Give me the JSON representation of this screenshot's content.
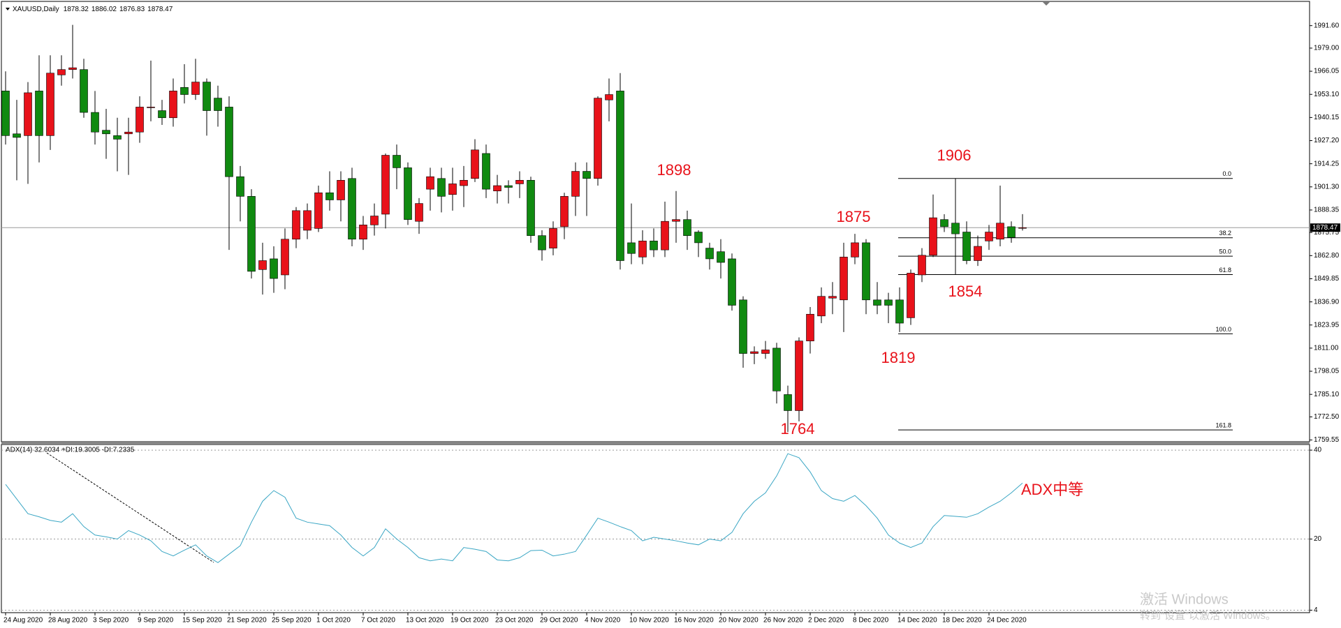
{
  "chart_data": [
    {
      "type": "candlestick",
      "title": "XAUUSD,Daily",
      "categories": [
        "24 Aug 2020",
        null,
        null,
        null,
        "28 Aug 2020",
        null,
        null,
        null,
        "3 Sep 2020",
        null,
        null,
        null,
        "9 Sep 2020",
        null,
        null,
        null,
        "15 Sep 2020",
        null,
        null,
        null,
        "21 Sep 2020",
        null,
        null,
        null,
        "25 Sep 2020",
        null,
        null,
        null,
        "1 Oct 2020",
        null,
        null,
        null,
        "7 Oct 2020",
        null,
        null,
        null,
        "13 Oct 2020",
        null,
        null,
        null,
        "19 Oct 2020",
        null,
        null,
        null,
        "23 Oct 2020",
        null,
        null,
        null,
        "29 Oct 2020",
        null,
        null,
        null,
        "4 Nov 2020",
        null,
        null,
        null,
        "10 Nov 2020",
        null,
        null,
        null,
        "16 Nov 2020",
        null,
        null,
        null,
        "20 Nov 2020",
        null,
        null,
        null,
        "26 Nov 2020",
        null,
        null,
        null,
        "2 Dec 2020",
        null,
        null,
        null,
        "8 Dec 2020",
        null,
        null,
        null,
        "14 Dec 2020",
        null,
        null,
        null,
        "18 Dec 2020",
        null,
        null,
        null,
        "24 Dec 2020",
        null,
        null,
        null
      ],
      "open": [
        1955,
        1931,
        1930,
        1955,
        1930,
        1964,
        1967,
        1967,
        1943,
        1933,
        1930,
        1931,
        1932,
        1946,
        1944,
        1940,
        1957,
        1953,
        1960,
        1951,
        1946,
        1907,
        1896,
        1855,
        1861,
        1852,
        1872,
        1877,
        1878,
        1898,
        1894,
        1906,
        1872,
        1880,
        1886,
        1919,
        1912,
        1882,
        1900,
        1906,
        1897,
        1902,
        1906,
        1920,
        1899,
        1902,
        1903,
        1905,
        1874,
        1867,
        1879,
        1896,
        1910,
        1906,
        1950,
        1955,
        1870,
        1862,
        1871,
        1866,
        1882,
        1883,
        1876,
        1867,
        1865,
        1861,
        1838,
        1808,
        1808,
        1811,
        1785,
        1776,
        1815,
        1829,
        1839,
        1838,
        1862,
        1870,
        1838,
        1838,
        1838,
        1828,
        1852,
        1863,
        1883,
        1881,
        1876,
        1860,
        1871,
        1872,
        1879,
        1878.32
      ],
      "high": [
        1966,
        1950,
        1960,
        1975,
        1975,
        1975,
        1992,
        1973,
        1955,
        1945,
        1940,
        1940,
        1952,
        1972,
        1950,
        1962,
        1970,
        1973,
        1962,
        1958,
        1952,
        1913,
        1900,
        1870,
        1868,
        1878,
        1890,
        1892,
        1902,
        1910,
        1910,
        1912,
        1885,
        1892,
        1920,
        1925,
        1915,
        1895,
        1912,
        1912,
        1912,
        1913,
        1928,
        1925,
        1908,
        1905,
        1910,
        1907,
        1877,
        1882,
        1898,
        1915,
        1915,
        1952,
        1962,
        1965,
        1892,
        1877,
        1878,
        1893,
        1899,
        1888,
        1877,
        1870,
        1872,
        1864,
        1840,
        1812,
        1815,
        1814,
        1790,
        1817,
        1834,
        1845,
        1848,
        1870,
        1875,
        1872,
        1848,
        1842,
        1845,
        1855,
        1867,
        1897,
        1886,
        1906,
        1882,
        1874,
        1880,
        1902,
        1882,
        1886.02
      ],
      "low": [
        1925,
        1905,
        1903,
        1915,
        1922,
        1958,
        1962,
        1940,
        1925,
        1917,
        1910,
        1908,
        1926,
        1938,
        1936,
        1935,
        1948,
        1950,
        1930,
        1935,
        1866,
        1882,
        1850,
        1841,
        1842,
        1844,
        1867,
        1872,
        1876,
        1888,
        1882,
        1868,
        1866,
        1874,
        1878,
        1900,
        1880,
        1875,
        1888,
        1887,
        1888,
        1890,
        1904,
        1895,
        1892,
        1892,
        1895,
        1870,
        1860,
        1863,
        1872,
        1885,
        1885,
        1902,
        1938,
        1855,
        1858,
        1858,
        1862,
        1862,
        1870,
        1866,
        1862,
        1855,
        1850,
        1832,
        1800,
        1802,
        1805,
        1780,
        1764,
        1770,
        1808,
        1825,
        1830,
        1820,
        1858,
        1830,
        1830,
        1825,
        1820,
        1824,
        1848,
        1862,
        1876,
        1852,
        1858,
        1857,
        1866,
        1868,
        1870,
        1876.83
      ],
      "close": [
        1930,
        1929,
        1954,
        1930,
        1965,
        1967,
        1968,
        1943,
        1932,
        1931,
        1928,
        1932,
        1946,
        1946,
        1940,
        1955,
        1953,
        1960,
        1944,
        1944,
        1907,
        1896,
        1854,
        1860,
        1850,
        1872,
        1888,
        1888,
        1898,
        1894,
        1905,
        1872,
        1880,
        1885,
        1919,
        1912,
        1883,
        1892,
        1907,
        1896,
        1903,
        1905,
        1922,
        1900,
        1902,
        1901,
        1905,
        1874,
        1866,
        1878,
        1896,
        1910,
        1906,
        1951,
        1953,
        1860,
        1864,
        1871,
        1866,
        1882,
        1883,
        1874,
        1870,
        1861,
        1859,
        1835,
        1808,
        1809,
        1810,
        1787,
        1776,
        1815,
        1830,
        1840,
        1840,
        1862,
        1870,
        1838,
        1835,
        1835,
        1825,
        1853,
        1863,
        1884,
        1879,
        1875,
        1860,
        1868,
        1876,
        1881,
        1873,
        1878.47
      ],
      "up_color": "#e8121a",
      "down_color": "#108a10",
      "ylim": [
        1758.6,
        2003.6
      ],
      "yticks": [
        {
          "value": 1991.6,
          "label": "1991.60"
        },
        {
          "value": 1979,
          "label": "1979.00"
        },
        1966.05,
        {
          "value": 1953.1,
          "label": "1953.10"
        },
        1940.15,
        {
          "value": 1927.2,
          "label": "1927.20"
        },
        1914.25,
        {
          "value": 1901.3,
          "label": "1901.30"
        },
        1888.35,
        1875.75,
        {
          "value": 1862.8,
          "label": "1862.80"
        },
        1849.85,
        {
          "value": 1836.9,
          "label": "1836.90"
        },
        1823.95,
        {
          "value": 1811,
          "label": "1811.00"
        },
        1798.05,
        {
          "value": 1785.1,
          "label": "1785.10"
        },
        {
          "value": 1772.5,
          "label": "1772.50"
        },
        1759.55
      ],
      "fibonacci": [
        {
          "label": "0.0",
          "price": 1906
        },
        {
          "label": "38.2",
          "price": 1872.8
        },
        {
          "label": "50.0",
          "price": 1862.5
        },
        {
          "label": "61.8",
          "price": 1852.2
        },
        {
          "label": "100.0",
          "price": 1819
        },
        {
          "label": "161.8",
          "price": 1765.2
        }
      ],
      "annotations": [
        "1898",
        "1906",
        "1875",
        "1854",
        "1819",
        "1764"
      ]
    },
    {
      "type": "line",
      "title": "ADX(14) 32.6034 +DI:19.3005 -DI:7.2335",
      "values": [
        32.3,
        29,
        25.7,
        25,
        24.2,
        23.8,
        25.7,
        22.8,
        20.9,
        20.5,
        20,
        21.9,
        20.9,
        19.6,
        17.2,
        16.2,
        17.5,
        18.7,
        16.2,
        14.7,
        16.6,
        18.5,
        23.8,
        28.5,
        30.9,
        29.4,
        24.7,
        23.8,
        23.4,
        23,
        20.9,
        18.1,
        16.2,
        18.1,
        22.3,
        20,
        18.1,
        15.8,
        15.1,
        15.5,
        15.1,
        18.1,
        17.7,
        17.2,
        15.3,
        15.1,
        15.8,
        17.4,
        17.5,
        16.2,
        16.6,
        17.2,
        20.9,
        24.7,
        23.8,
        22.8,
        21.9,
        19.6,
        20.4,
        20,
        19.6,
        19.1,
        18.7,
        20,
        19.6,
        21.5,
        25.7,
        28.5,
        30.4,
        34.2,
        39.2,
        38.3,
        35.1,
        30.9,
        29.1,
        28.5,
        29.8,
        27.5,
        24.7,
        20.9,
        19.1,
        18.1,
        19.1,
        22.8,
        25.3,
        25.1,
        24.9,
        25.7,
        27.2,
        28.5,
        30.4,
        32.6
      ],
      "color": "#3aa6c4",
      "ylim": [
        3.6,
        40.8
      ],
      "yticks": [
        40,
        20,
        4
      ],
      "grid": true,
      "annotations": [
        "ADX中等"
      ]
    }
  ],
  "watermark": [
    "激活 Windows",
    "转到“设置”以激活 Windows。"
  ]
}
